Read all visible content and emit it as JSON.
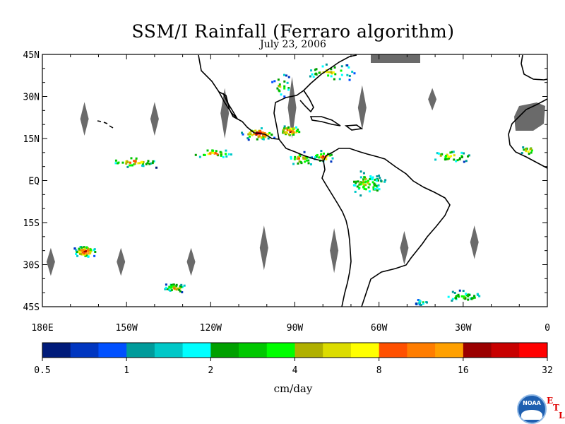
{
  "title": "SSM/I Rainfall (Ferraro algorithm)",
  "subtitle": "July 23, 2006",
  "map": {
    "lon_range": [
      -180,
      0
    ],
    "lat_range": [
      -45,
      45
    ],
    "lat_labels": [
      {
        "lat": 45,
        "text": "45N"
      },
      {
        "lat": 30,
        "text": "30N"
      },
      {
        "lat": 15,
        "text": "15N"
      },
      {
        "lat": 0,
        "text": "EQ"
      },
      {
        "lat": -15,
        "text": "15S"
      },
      {
        "lat": -30,
        "text": "30S"
      },
      {
        "lat": -45,
        "text": "45S"
      }
    ],
    "lon_labels": [
      {
        "lon": -180,
        "text": "180E"
      },
      {
        "lon": -150,
        "text": "150W"
      },
      {
        "lon": -120,
        "text": "120W"
      },
      {
        "lon": -90,
        "text": "90W"
      },
      {
        "lon": -60,
        "text": "60W"
      },
      {
        "lon": -30,
        "text": "30W"
      },
      {
        "lon": 0,
        "text": "0"
      }
    ],
    "no_data_color": "#6a6a6a",
    "coastline_color": "#000000",
    "orbit_gaps": [
      {
        "lon": -165,
        "lat_center": 22,
        "lat_half": 6
      },
      {
        "lon": -140,
        "lat_center": 22,
        "lat_half": 6
      },
      {
        "lon": -115,
        "lat_center": 24,
        "lat_half": 9
      },
      {
        "lon": -91,
        "lat_center": 26,
        "lat_half": 11
      },
      {
        "lon": -66,
        "lat_center": 26,
        "lat_half": 8
      },
      {
        "lon": -41,
        "lat_center": 29,
        "lat_half": 4
      },
      {
        "lon": -177,
        "lat_center": -29,
        "lat_half": 5
      },
      {
        "lon": -152,
        "lat_center": -29,
        "lat_half": 5
      },
      {
        "lon": -127,
        "lat_center": -29,
        "lat_half": 5
      },
      {
        "lon": -101,
        "lat_center": -24,
        "lat_half": 8
      },
      {
        "lon": -76,
        "lat_center": -25,
        "lat_half": 8
      },
      {
        "lon": -51,
        "lat_center": -24,
        "lat_half": 6
      },
      {
        "lon": -26,
        "lat_center": -22,
        "lat_half": 6
      }
    ],
    "rain_areas": [
      {
        "lon": -165,
        "lat": -25,
        "spread_lon": 5,
        "spread_lat": 2.5,
        "count": 70,
        "max_level": 16
      },
      {
        "lon": -133,
        "lat": -38,
        "spread_lon": 5,
        "spread_lat": 2,
        "count": 40,
        "max_level": 12
      },
      {
        "lon": -103,
        "lat": 17,
        "spread_lon": 7,
        "spread_lat": 2.5,
        "count": 60,
        "max_level": 17
      },
      {
        "lon": -92,
        "lat": 18,
        "spread_lon": 5,
        "spread_lat": 2.5,
        "count": 40,
        "max_level": 15
      },
      {
        "lon": -80,
        "lat": 9,
        "spread_lon": 5,
        "spread_lat": 2.5,
        "count": 30,
        "max_level": 14
      },
      {
        "lon": -88,
        "lat": 8,
        "spread_lon": 6,
        "spread_lat": 3,
        "count": 30,
        "max_level": 12
      },
      {
        "lon": -148,
        "lat": 7,
        "spread_lon": 12,
        "spread_lat": 2.5,
        "count": 40,
        "max_level": 12
      },
      {
        "lon": -120,
        "lat": 10,
        "spread_lon": 10,
        "spread_lat": 2,
        "count": 30,
        "max_level": 13
      },
      {
        "lon": -65,
        "lat": -1,
        "spread_lon": 9,
        "spread_lat": 6,
        "count": 70,
        "max_level": 10
      },
      {
        "lon": -35,
        "lat": 9,
        "spread_lon": 10,
        "spread_lat": 3,
        "count": 35,
        "max_level": 11
      },
      {
        "lon": -7,
        "lat": 11,
        "spread_lon": 4,
        "spread_lat": 2,
        "count": 15,
        "max_level": 12
      },
      {
        "lon": -78,
        "lat": 39,
        "spread_lon": 12,
        "spread_lat": 4,
        "count": 40,
        "max_level": 10
      },
      {
        "lon": -30,
        "lat": -41,
        "spread_lon": 10,
        "spread_lat": 2.5,
        "count": 40,
        "max_level": 9
      },
      {
        "lon": -45,
        "lat": -43,
        "spread_lon": 4,
        "spread_lat": 1.5,
        "count": 15,
        "max_level": 6
      },
      {
        "lon": -95,
        "lat": 34,
        "spread_lon": 4,
        "spread_lat": 5,
        "count": 20,
        "max_level": 10
      }
    ]
  },
  "colorbar": {
    "colors": [
      "#001b7a",
      "#0036c0",
      "#0050ff",
      "#009b9b",
      "#00c8c8",
      "#00ffff",
      "#00a000",
      "#00c800",
      "#00ff00",
      "#b0b000",
      "#dcdc00",
      "#ffff00",
      "#ff5000",
      "#ff7d00",
      "#ffa000",
      "#9b0000",
      "#c80000",
      "#ff0000"
    ],
    "labels": [
      "0.5",
      "1",
      "2",
      "4",
      "8",
      "16",
      "32"
    ],
    "units": "cm/day"
  },
  "logo": {
    "text": "NOAA",
    "etl_letters": [
      "E",
      "T",
      "L"
    ]
  }
}
